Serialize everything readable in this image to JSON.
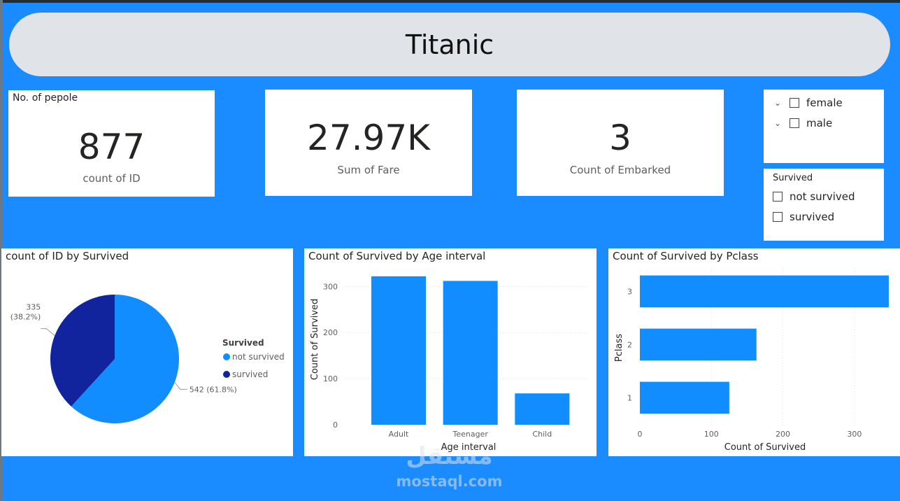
{
  "title": "Titanic",
  "kpis": {
    "people": {
      "header": "No. of pepole",
      "value": "877",
      "label": "count of ID"
    },
    "fare": {
      "value": "27.97K",
      "label": "Sum of Fare"
    },
    "embarked": {
      "value": "3",
      "label": "Count of Embarked"
    }
  },
  "sex_slicer": {
    "items": [
      {
        "label": "female"
      },
      {
        "label": "male"
      }
    ]
  },
  "survived_slicer": {
    "title": "Survived",
    "items": [
      {
        "label": "not survived"
      },
      {
        "label": "survived"
      }
    ]
  },
  "watermark": {
    "logo": "مستقل",
    "url": "mostaql.com"
  },
  "colors": {
    "background": "#1a8cff",
    "series_light": "#118dff",
    "series_dark": "#12239e",
    "banner": "#e0e3e8"
  },
  "chart_data": [
    {
      "type": "pie",
      "title": "count of ID by Survived",
      "legend_title": "Survived",
      "legend_position": "right",
      "slices": [
        {
          "name": "not survived",
          "value": 542,
          "label": "542 (61.8%)",
          "color": "#118dff"
        },
        {
          "name": "survived",
          "value": 335,
          "label": "335 (38.2%)",
          "color": "#12239e"
        }
      ]
    },
    {
      "type": "bar",
      "title": "Count of Survived by Age interval",
      "xlabel": "Age interval",
      "ylabel": "Count of Survived",
      "categories": [
        "Adult",
        "Teenager",
        "Child"
      ],
      "values": [
        322,
        312,
        68
      ],
      "yticks": [
        0,
        100,
        200,
        300
      ],
      "ylim": [
        0,
        340
      ],
      "grid": true
    },
    {
      "type": "bar",
      "orientation": "horizontal",
      "title": "Count of Survived by Pclass",
      "xlabel": "Count of Survived",
      "ylabel": "Pclass",
      "categories": [
        "3",
        "2",
        "1"
      ],
      "values": [
        348,
        163,
        125
      ],
      "xticks": [
        0,
        100,
        200,
        300
      ],
      "xlim": [
        0,
        350
      ],
      "grid": true
    }
  ]
}
